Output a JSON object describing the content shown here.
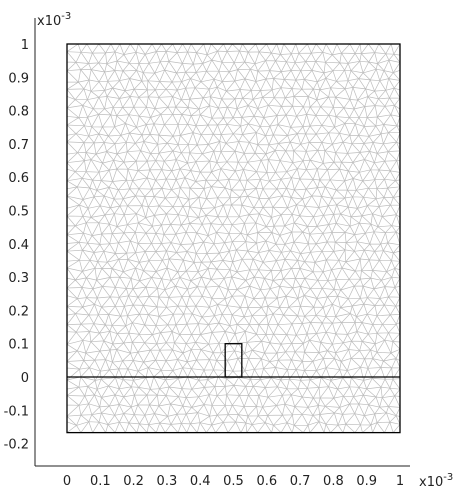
{
  "chart_data": {
    "type": "mesh",
    "x_multiplier_label": "x10",
    "x_multiplier_exponent": "-3",
    "y_multiplier_label": "x10",
    "y_multiplier_exponent": "-3",
    "xlim": [
      0,
      1
    ],
    "ylim": [
      -0.2,
      1.0
    ],
    "x_ticks": [
      0,
      0.1,
      0.2,
      0.3,
      0.4,
      0.5,
      0.6,
      0.7,
      0.8,
      0.9,
      1
    ],
    "x_tick_labels": [
      "0",
      "0.1",
      "0.2",
      "0.3",
      "0.4",
      "0.5",
      "0.6",
      "0.7",
      "0.8",
      "0.9",
      "1"
    ],
    "y_ticks": [
      1,
      0.9,
      0.8,
      0.7,
      0.6,
      0.5,
      0.4,
      0.3,
      0.2,
      0.1,
      0,
      -0.1,
      -0.2
    ],
    "y_tick_labels": [
      "1",
      "0.9",
      "0.8",
      "0.7",
      "0.6",
      "0.5",
      "0.4",
      "0.3",
      "0.2",
      "0.1",
      "0",
      "-0.1",
      "-0.2"
    ],
    "domain": {
      "x": [
        0,
        1
      ],
      "y": [
        -0.167,
        1.0
      ]
    },
    "interface_line_y": 0,
    "inner_rect": {
      "x": [
        0.475,
        0.525
      ],
      "y": [
        0,
        0.1
      ]
    },
    "mesh_color": "#bdbdbd",
    "boundary_color": "#000000"
  }
}
